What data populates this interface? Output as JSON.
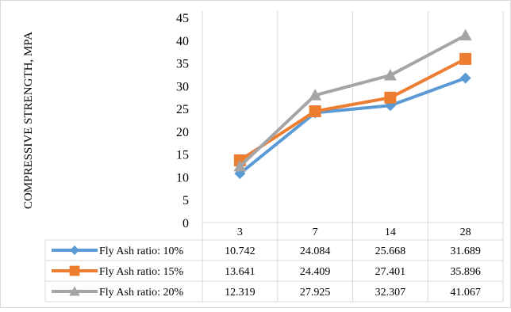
{
  "chart_data": {
    "type": "line",
    "title": "",
    "xlabel": "",
    "ylabel": "COMPRESSIVE STRENGTH, MPA",
    "categories": [
      "3",
      "7",
      "14",
      "28"
    ],
    "ylim": [
      0,
      45
    ],
    "ytick_step": 5,
    "grid": "vertical category dividers",
    "legend": "data table below chart",
    "series": [
      {
        "name": "Fly Ash ratio: 10%",
        "color": "#5B9BD5",
        "marker": "diamond",
        "values": [
          10.742,
          24.084,
          25.668,
          31.689
        ],
        "labels": [
          "10.742",
          "24.084",
          "25.668",
          "31.689"
        ]
      },
      {
        "name": "Fly Ash ratio: 15%",
        "color": "#ED7D31",
        "marker": "square",
        "values": [
          13.641,
          24.409,
          27.401,
          35.896
        ],
        "labels": [
          "13.641",
          "24.409",
          "27.401",
          "35.896"
        ]
      },
      {
        "name": "Fly Ash ratio: 20%",
        "color": "#A5A5A5",
        "marker": "triangle",
        "values": [
          12.319,
          27.925,
          32.307,
          41.067
        ],
        "labels": [
          "12.319",
          "27.925",
          "32.307",
          "41.067"
        ]
      }
    ]
  }
}
